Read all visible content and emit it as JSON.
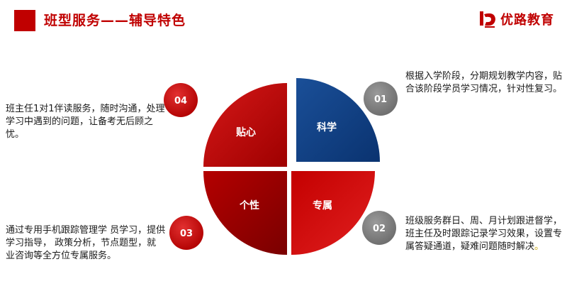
{
  "header": {
    "title": "班型服务——辅导特色",
    "logo_text": "优路教育"
  },
  "quadrants": {
    "science": "科学",
    "attentive": "贴心",
    "personal": "个性",
    "exclusive": "专属"
  },
  "badges": {
    "b01": "01",
    "b02": "02",
    "b03": "03",
    "b04": "04"
  },
  "descriptions": {
    "d01": "根据入学阶段，分期规划教学内容，贴合该阶段学员学习情况，针对性复习。",
    "d02": "班级服务群日、周、月计划跟进督学，班主任及时跟踪记录学习效果，设置专属答疑通道，疑难问题随时解决",
    "d02_end": "。",
    "d03": "通过专用手机跟踪管理学 员学习，提供学习指导， 政策分析，节点题型，就 业咨询等全方位专属服务。",
    "d04": "班主任1对1伴读服务，随时沟通，处理学习中遇到的问题，让备考无后顾之忧。"
  },
  "colors": {
    "brand_red": "#c00000",
    "navy": "#0e3e80",
    "gray_badge": "#7f7f7f",
    "dark_red": "#8b0000"
  }
}
